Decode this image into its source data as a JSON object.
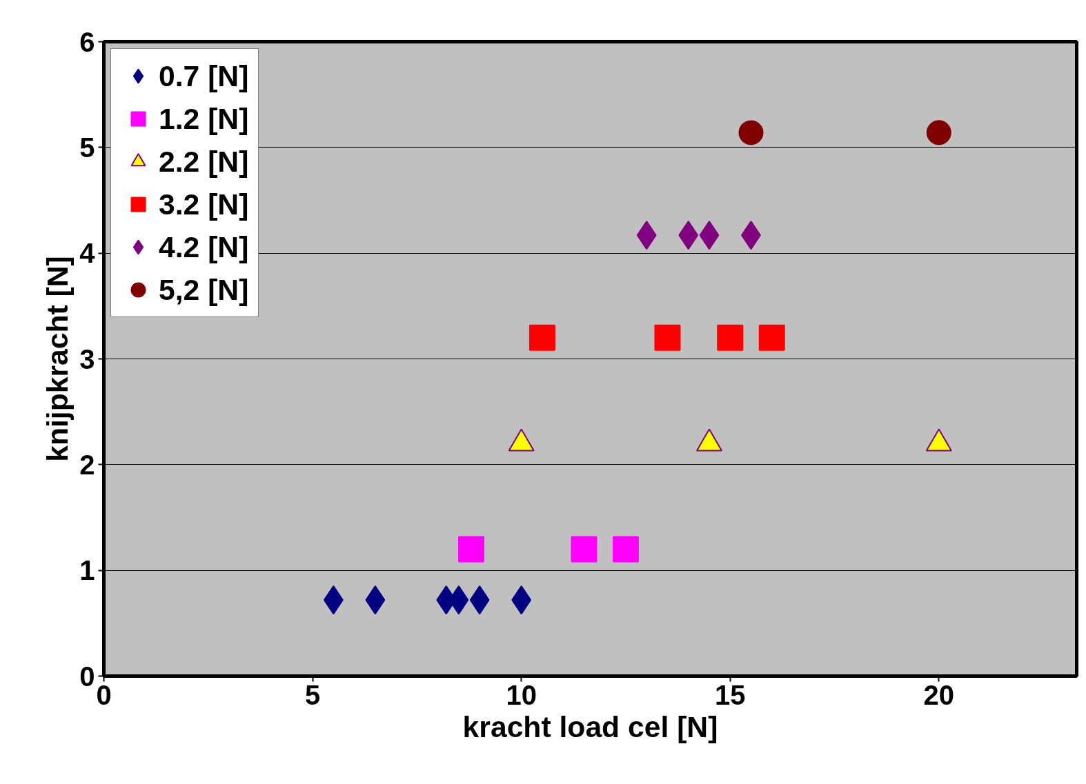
{
  "chart_data": {
    "type": "scatter",
    "xlabel": "kracht load cel [N]",
    "ylabel": "knijpkracht [N]",
    "xlim": [
      0,
      23.3
    ],
    "xticks": [
      0,
      5,
      10,
      15,
      20
    ],
    "ylim": [
      0,
      6
    ],
    "yticks": [
      0,
      1,
      2,
      3,
      4,
      5,
      6
    ],
    "grid": "y",
    "legend": "top left",
    "series": [
      {
        "name": "0.7 [N]",
        "color": "#000080",
        "marker": "diamond",
        "x": [
          5.5,
          6.5,
          8.2,
          8.5,
          9,
          10
        ],
        "values": [
          0.72,
          0.72,
          0.72,
          0.72,
          0.72,
          0.72
        ]
      },
      {
        "name": "1.2 [N]",
        "color": "#ff00ff",
        "marker": "square",
        "x": [
          8.8,
          11.5,
          12.5
        ],
        "values": [
          1.2,
          1.2,
          1.2
        ]
      },
      {
        "name": "2.2 [N]",
        "color": "#ffff00",
        "marker": "triangle",
        "x": [
          10,
          14.5,
          20
        ],
        "values": [
          2.2,
          2.2,
          2.2
        ]
      },
      {
        "name": "3.2 [N]",
        "color": "#ff0000",
        "marker": "square",
        "x": [
          10.5,
          13.5,
          15,
          16
        ],
        "values": [
          3.2,
          3.2,
          3.2,
          3.2
        ]
      },
      {
        "name": "4.2 [N]",
        "color": "#800080",
        "marker": "diamond",
        "x": [
          13,
          14,
          14.5,
          15.5
        ],
        "values": [
          4.17,
          4.17,
          4.17,
          4.17
        ]
      },
      {
        "name": "5,2 [N]",
        "color": "#800000",
        "marker": "circle",
        "x": [
          15.5,
          20
        ],
        "values": [
          5.14,
          5.14
        ]
      }
    ]
  }
}
